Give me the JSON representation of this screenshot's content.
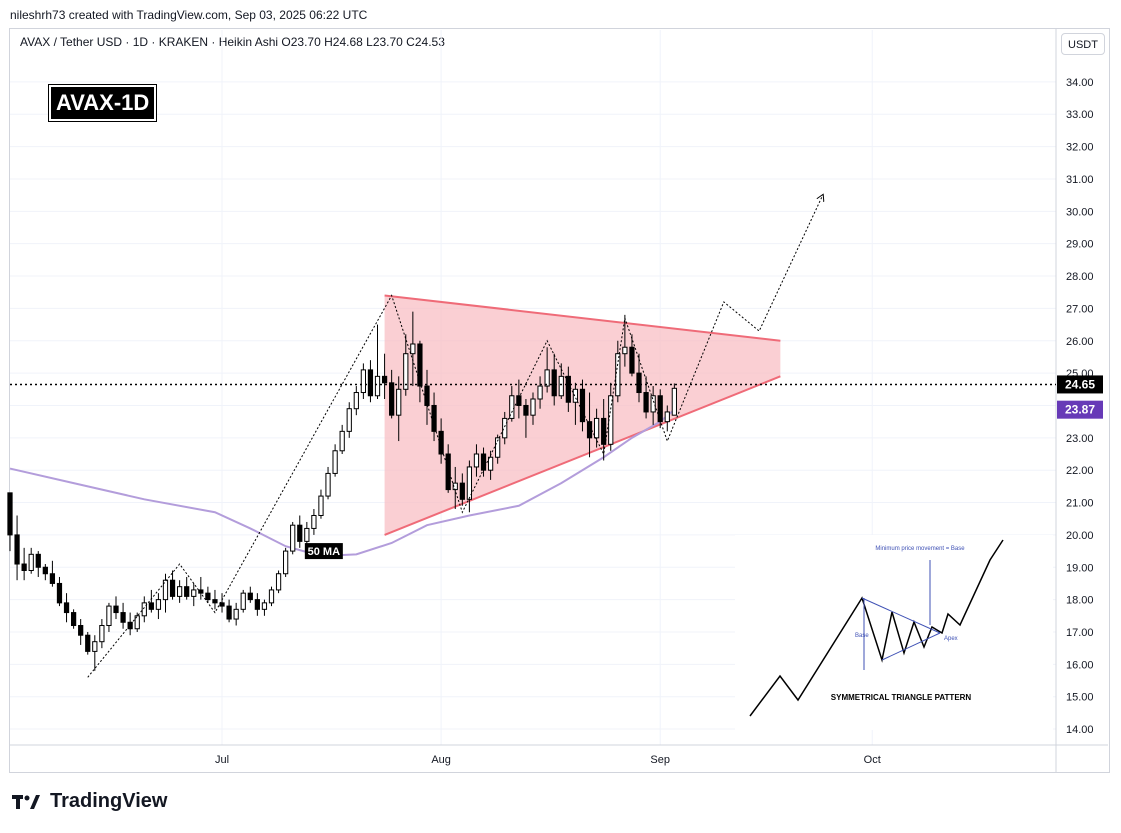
{
  "header": {
    "credit": "nileshrh73 created with TradingView.com, Sep 03, 2025 06:22 UTC",
    "symbol_line": "AVAX / Tether USD · 1D · KRAKEN · Heikin Ashi  O23.70  H24.68  L23.70  C24.53",
    "badge": "AVAX-1D",
    "currency_button": "USDT"
  },
  "footer": {
    "brand": "TradingView"
  },
  "colors": {
    "bull": "#ffffff",
    "bear": "#000000",
    "ma": "#b39ddb",
    "triangle_fill": "#f8bbc0",
    "triangle_line": "#ef6b78",
    "price_tag": "#000000",
    "ma_tag": "#673ab7"
  },
  "chart_data": {
    "type": "candlestick",
    "title": "AVAX / Tether USD · 1D · KRAKEN · Heikin Ashi",
    "ylim": [
      13.6,
      34.8
    ],
    "y_ticks": [
      "14.00",
      "15.00",
      "16.00",
      "17.00",
      "18.00",
      "19.00",
      "20.00",
      "21.00",
      "22.00",
      "23.00",
      "24.00",
      "25.00",
      "26.00",
      "27.00",
      "28.00",
      "29.00",
      "30.00",
      "31.00",
      "32.00",
      "33.00",
      "34.00"
    ],
    "x_ticks": [
      {
        "label": "Jul",
        "date": "2025-07-01"
      },
      {
        "label": "Aug",
        "date": "2025-08-01"
      },
      {
        "label": "Sep",
        "date": "2025-09-01"
      },
      {
        "label": "Oct",
        "date": "2025-10-01"
      }
    ],
    "x_range": [
      "2025-06-01",
      "2025-10-27"
    ],
    "last_price": {
      "value": 24.65,
      "label": "24.65"
    },
    "ma_value": {
      "value": 23.87,
      "label": "23.87"
    },
    "ma_label": "50 MA",
    "candles": [
      [
        "2025-06-01",
        21.3,
        21.3,
        19.5,
        20.0
      ],
      [
        "2025-06-02",
        20.0,
        20.6,
        18.6,
        19.1
      ],
      [
        "2025-06-03",
        19.1,
        19.6,
        18.6,
        18.9
      ],
      [
        "2025-06-04",
        18.9,
        19.6,
        18.8,
        19.4
      ],
      [
        "2025-06-05",
        19.4,
        19.5,
        18.7,
        19.0
      ],
      [
        "2025-06-06",
        19.0,
        19.1,
        18.6,
        18.8
      ],
      [
        "2025-06-07",
        18.8,
        19.2,
        18.4,
        18.5
      ],
      [
        "2025-06-08",
        18.5,
        18.7,
        17.8,
        17.9
      ],
      [
        "2025-06-09",
        17.9,
        18.2,
        17.3,
        17.6
      ],
      [
        "2025-06-10",
        17.6,
        17.7,
        17.1,
        17.2
      ],
      [
        "2025-06-11",
        17.2,
        17.4,
        16.6,
        16.9
      ],
      [
        "2025-06-12",
        16.9,
        17.0,
        16.3,
        16.4
      ],
      [
        "2025-06-13",
        16.4,
        16.9,
        15.8,
        16.7
      ],
      [
        "2025-06-14",
        16.7,
        17.4,
        16.5,
        17.2
      ],
      [
        "2025-06-15",
        17.2,
        17.9,
        17.0,
        17.8
      ],
      [
        "2025-06-16",
        17.8,
        18.1,
        17.4,
        17.6
      ],
      [
        "2025-06-17",
        17.6,
        17.9,
        17.1,
        17.3
      ],
      [
        "2025-06-18",
        17.3,
        17.6,
        16.9,
        17.1
      ],
      [
        "2025-06-19",
        17.1,
        17.6,
        17.0,
        17.5
      ],
      [
        "2025-06-20",
        17.5,
        18.1,
        17.3,
        17.9
      ],
      [
        "2025-06-21",
        17.9,
        18.3,
        17.6,
        17.7
      ],
      [
        "2025-06-22",
        17.7,
        18.2,
        17.4,
        18.0
      ],
      [
        "2025-06-23",
        18.0,
        18.8,
        17.6,
        18.6
      ],
      [
        "2025-06-24",
        18.6,
        18.9,
        18.0,
        18.1
      ],
      [
        "2025-06-25",
        18.1,
        18.6,
        17.9,
        18.4
      ],
      [
        "2025-06-26",
        18.4,
        18.7,
        18.0,
        18.1
      ],
      [
        "2025-06-27",
        18.1,
        18.5,
        17.8,
        18.3
      ],
      [
        "2025-06-28",
        18.3,
        18.7,
        18.0,
        18.2
      ],
      [
        "2025-06-29",
        18.2,
        18.4,
        17.9,
        18.0
      ],
      [
        "2025-06-30",
        18.0,
        18.3,
        17.7,
        17.9
      ],
      [
        "2025-07-01",
        17.9,
        18.2,
        17.6,
        17.8
      ],
      [
        "2025-07-02",
        17.8,
        18.0,
        17.3,
        17.4
      ],
      [
        "2025-07-03",
        17.4,
        17.9,
        17.2,
        17.7
      ],
      [
        "2025-07-04",
        17.7,
        18.3,
        17.6,
        18.2
      ],
      [
        "2025-07-05",
        18.2,
        18.4,
        17.9,
        18.0
      ],
      [
        "2025-07-06",
        18.0,
        18.2,
        17.5,
        17.7
      ],
      [
        "2025-07-07",
        17.7,
        18.0,
        17.5,
        17.9
      ],
      [
        "2025-07-08",
        17.9,
        18.4,
        17.8,
        18.3
      ],
      [
        "2025-07-09",
        18.3,
        18.9,
        18.2,
        18.8
      ],
      [
        "2025-07-10",
        18.8,
        19.6,
        18.7,
        19.5
      ],
      [
        "2025-07-11",
        19.5,
        20.4,
        19.4,
        20.3
      ],
      [
        "2025-07-12",
        20.3,
        20.6,
        19.6,
        19.8
      ],
      [
        "2025-07-13",
        19.8,
        20.4,
        19.6,
        20.2
      ],
      [
        "2025-07-14",
        20.2,
        20.8,
        20.0,
        20.6
      ],
      [
        "2025-07-15",
        20.6,
        21.4,
        20.5,
        21.2
      ],
      [
        "2025-07-16",
        21.2,
        22.1,
        21.1,
        21.9
      ],
      [
        "2025-07-17",
        21.9,
        22.8,
        21.8,
        22.6
      ],
      [
        "2025-07-18",
        22.6,
        23.4,
        22.5,
        23.2
      ],
      [
        "2025-07-19",
        23.2,
        24.1,
        23.0,
        23.9
      ],
      [
        "2025-07-20",
        23.9,
        24.6,
        23.7,
        24.4
      ],
      [
        "2025-07-21",
        24.4,
        25.3,
        24.2,
        25.1
      ],
      [
        "2025-07-22",
        25.1,
        25.4,
        24.1,
        24.3
      ],
      [
        "2025-07-23",
        24.3,
        26.5,
        24.2,
        24.9
      ],
      [
        "2025-07-24",
        24.9,
        25.6,
        24.2,
        24.7
      ],
      [
        "2025-07-25",
        24.7,
        25.1,
        23.6,
        23.7
      ],
      [
        "2025-07-26",
        23.7,
        24.9,
        22.9,
        24.5
      ],
      [
        "2025-07-27",
        24.5,
        26.2,
        24.3,
        25.6
      ],
      [
        "2025-07-28",
        25.6,
        26.9,
        24.6,
        25.9
      ],
      [
        "2025-07-29",
        25.9,
        26.0,
        24.1,
        24.6
      ],
      [
        "2025-07-30",
        24.6,
        25.1,
        23.4,
        24.0
      ],
      [
        "2025-07-31",
        24.0,
        24.4,
        22.9,
        23.2
      ],
      [
        "2025-08-01",
        23.2,
        23.6,
        22.2,
        22.5
      ],
      [
        "2025-08-02",
        22.5,
        22.8,
        21.3,
        21.4
      ],
      [
        "2025-08-03",
        21.4,
        22.1,
        20.8,
        21.6
      ],
      [
        "2025-08-04",
        21.6,
        21.9,
        20.9,
        21.1
      ],
      [
        "2025-08-05",
        21.1,
        22.3,
        20.7,
        22.1
      ],
      [
        "2025-08-06",
        22.1,
        22.8,
        21.8,
        22.5
      ],
      [
        "2025-08-07",
        22.5,
        22.7,
        21.8,
        22.0
      ],
      [
        "2025-08-08",
        22.0,
        22.6,
        21.7,
        22.4
      ],
      [
        "2025-08-09",
        22.4,
        23.1,
        22.2,
        23.0
      ],
      [
        "2025-08-10",
        23.0,
        23.8,
        22.8,
        23.6
      ],
      [
        "2025-08-11",
        23.6,
        24.6,
        23.5,
        24.3
      ],
      [
        "2025-08-12",
        24.3,
        24.8,
        23.6,
        24.0
      ],
      [
        "2025-08-13",
        24.0,
        24.2,
        23.0,
        23.7
      ],
      [
        "2025-08-14",
        23.7,
        24.4,
        23.4,
        24.2
      ],
      [
        "2025-08-15",
        24.2,
        24.9,
        23.9,
        24.6
      ],
      [
        "2025-08-16",
        24.6,
        25.8,
        24.4,
        25.1
      ],
      [
        "2025-08-17",
        25.1,
        25.6,
        24.0,
        24.3
      ],
      [
        "2025-08-18",
        24.3,
        25.3,
        24.2,
        24.9
      ],
      [
        "2025-08-19",
        24.9,
        25.2,
        23.8,
        24.1
      ],
      [
        "2025-08-20",
        24.1,
        24.7,
        23.4,
        24.5
      ],
      [
        "2025-08-21",
        24.5,
        24.8,
        23.2,
        23.5
      ],
      [
        "2025-08-22",
        23.5,
        24.4,
        22.4,
        23.0
      ],
      [
        "2025-08-23",
        23.0,
        23.9,
        22.7,
        23.6
      ],
      [
        "2025-08-24",
        23.6,
        24.2,
        22.3,
        22.8
      ],
      [
        "2025-08-25",
        22.8,
        24.7,
        22.6,
        24.3
      ],
      [
        "2025-08-26",
        24.3,
        26.0,
        24.1,
        25.6
      ],
      [
        "2025-08-27",
        25.6,
        26.8,
        25.2,
        25.8
      ],
      [
        "2025-08-28",
        25.8,
        26.2,
        24.9,
        25.0
      ],
      [
        "2025-08-29",
        25.0,
        25.6,
        24.1,
        24.4
      ],
      [
        "2025-08-30",
        24.4,
        24.9,
        23.6,
        23.8
      ],
      [
        "2025-08-31",
        23.8,
        24.6,
        23.4,
        24.3
      ],
      [
        "2025-09-01",
        24.3,
        24.5,
        23.3,
        23.5
      ],
      [
        "2025-09-02",
        23.5,
        24.0,
        23.2,
        23.8
      ],
      [
        "2025-09-03",
        23.7,
        24.68,
        23.7,
        24.53
      ]
    ],
    "ma_50": [
      [
        "2025-06-01",
        22.05
      ],
      [
        "2025-06-10",
        21.6
      ],
      [
        "2025-06-20",
        21.1
      ],
      [
        "2025-06-30",
        20.7
      ],
      [
        "2025-07-05",
        20.2
      ],
      [
        "2025-07-10",
        19.65
      ],
      [
        "2025-07-15",
        19.35
      ],
      [
        "2025-07-20",
        19.4
      ],
      [
        "2025-07-25",
        19.75
      ],
      [
        "2025-07-30",
        20.3
      ],
      [
        "2025-08-05",
        20.6
      ],
      [
        "2025-08-12",
        20.9
      ],
      [
        "2025-08-18",
        21.6
      ],
      [
        "2025-08-24",
        22.4
      ],
      [
        "2025-08-28",
        23.0
      ],
      [
        "2025-09-01",
        23.5
      ],
      [
        "2025-09-03",
        23.87
      ]
    ],
    "triangle": {
      "upper": [
        [
          "2025-07-24",
          27.4
        ],
        [
          "2025-09-18",
          26.0
        ]
      ],
      "lower": [
        [
          "2025-07-24",
          20.0
        ],
        [
          "2025-09-18",
          24.9
        ]
      ]
    },
    "zigzag": [
      [
        "2025-06-12",
        15.6
      ],
      [
        "2025-06-25",
        19.1
      ],
      [
        "2025-06-30",
        17.6
      ],
      [
        "2025-07-25",
        27.4
      ],
      [
        "2025-08-04",
        20.7
      ],
      [
        "2025-08-16",
        26.0
      ],
      [
        "2025-08-24",
        22.5
      ],
      [
        "2025-08-27",
        26.7
      ],
      [
        "2025-09-02",
        22.9
      ],
      [
        "2025-09-10",
        27.2
      ],
      [
        "2025-09-15",
        26.3
      ],
      [
        "2025-09-24",
        30.5
      ]
    ],
    "inset": {
      "title": "SYMMETRICAL TRIANGLE PATTERN",
      "note": "Minimum price movement = Base",
      "base_label": "Base",
      "apex_label": "Apex"
    }
  }
}
